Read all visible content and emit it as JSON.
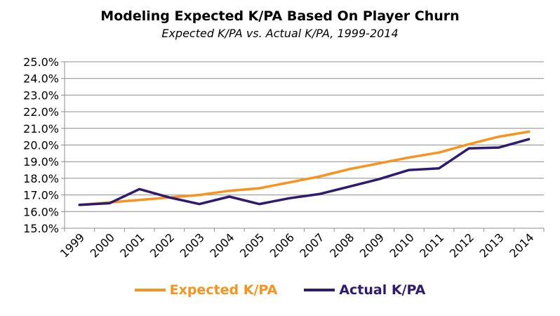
{
  "chart_data": {
    "type": "line",
    "title": "Modeling Expected K/PA Based On Player Churn",
    "subtitle": "Expected K/PA vs. Actual K/PA, 1999-2014",
    "xlabel": "",
    "ylabel": "",
    "categories": [
      "1999",
      "2000",
      "2001",
      "2002",
      "2003",
      "2004",
      "2005",
      "2006",
      "2007",
      "2008",
      "2009",
      "2010",
      "2011",
      "2012",
      "2013",
      "2014"
    ],
    "ylim": [
      15.0,
      25.0
    ],
    "yticks": [
      "15.0%",
      "16.0%",
      "17.0%",
      "18.0%",
      "19.0%",
      "20.0%",
      "21.0%",
      "22.0%",
      "23.0%",
      "24.0%",
      "25.0%"
    ],
    "grid": true,
    "legend": "bottom",
    "series": [
      {
        "name": "Expected K/PA",
        "color": "#F7931E",
        "values": [
          16.4,
          16.55,
          16.7,
          16.85,
          17.0,
          17.25,
          17.4,
          17.75,
          18.1,
          18.55,
          18.9,
          19.25,
          19.55,
          20.05,
          20.5,
          20.8
        ]
      },
      {
        "name": "Actual K/PA",
        "color": "#2E1A6E",
        "values": [
          16.4,
          16.5,
          17.35,
          16.85,
          16.45,
          16.9,
          16.45,
          16.8,
          17.05,
          17.5,
          17.95,
          18.5,
          18.6,
          19.8,
          19.85,
          20.35
        ]
      }
    ]
  }
}
